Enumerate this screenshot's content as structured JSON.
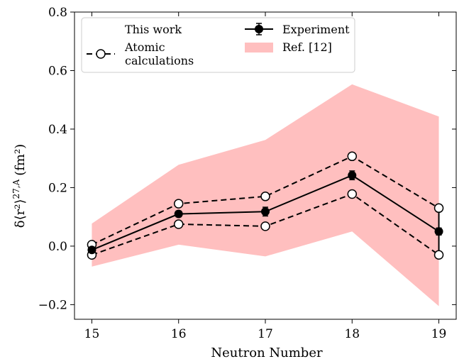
{
  "chart_data": {
    "type": "line",
    "xlabel": "Neutron Number",
    "ylabel": "δ⟨r²⟩",
    "ylabel_superscript": "27,A",
    "ylabel_unit": "(fm²)",
    "x": [
      15,
      16,
      17,
      18,
      19
    ],
    "xlim": [
      14.8,
      19.2
    ],
    "ylim": [
      -0.25,
      0.8
    ],
    "x_ticks": [
      "15",
      "16",
      "17",
      "18",
      "19"
    ],
    "y_ticks": [
      {
        "value": 0.8,
        "label": "0.8"
      },
      {
        "value": 0.6,
        "label": "0.6"
      },
      {
        "value": 0.4,
        "label": "0.4"
      },
      {
        "value": 0.2,
        "label": "0.2"
      },
      {
        "value": 0.0,
        "label": "0.0"
      },
      {
        "value": -0.2,
        "label": "−0.2"
      }
    ],
    "grid": false,
    "legend_placement": "top-left",
    "legend": {
      "this_work": "This work",
      "atomic_line1": "Atomic",
      "atomic_line2": "calculations",
      "experiment": "Experiment",
      "ref": "Ref. [12]"
    },
    "series": [
      {
        "name": "Ref. [12]",
        "kind": "band",
        "color": "#ffbfbf",
        "lower": [
          -0.07,
          0.005,
          -0.035,
          0.05,
          -0.205
        ],
        "upper": [
          0.077,
          0.278,
          0.363,
          0.553,
          0.443
        ]
      },
      {
        "name": "Atomic calculations",
        "kind": "dashed",
        "color": "#000000",
        "upper": [
          0.005,
          0.145,
          0.17,
          0.307,
          0.13
        ],
        "lower": [
          -0.03,
          0.075,
          0.068,
          0.178,
          -0.03
        ]
      },
      {
        "name": "Experiment",
        "kind": "solid",
        "color": "#000000",
        "values": [
          -0.013,
          0.11,
          0.118,
          0.242,
          0.05
        ],
        "errors": [
          0.008,
          0.01,
          0.015,
          0.015,
          0.012
        ]
      }
    ]
  }
}
